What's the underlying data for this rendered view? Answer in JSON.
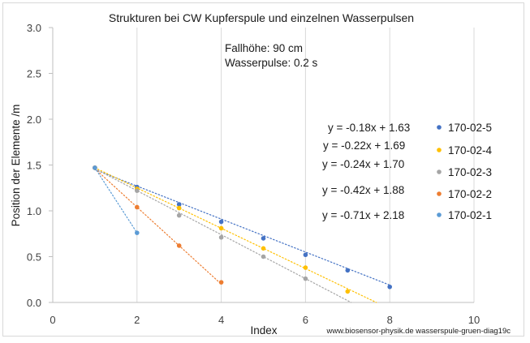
{
  "chart_data": {
    "type": "scatter",
    "title": "Strukturen bei CW Kupferspule und einzelnen Wasserpulsen",
    "xlabel": "Index",
    "ylabel": "Position der Elemente /m",
    "xlim": [
      0,
      10
    ],
    "ylim": [
      0,
      3.0
    ],
    "x_ticks": [
      "0",
      "2",
      "4",
      "6",
      "8",
      "10"
    ],
    "y_ticks": [
      "0.0",
      "0.5",
      "1.0",
      "1.5",
      "2.0",
      "2.5",
      "3.0"
    ],
    "grid": "vertical",
    "legend_position": "right",
    "annotations": [
      "Fallhöhe: 90 cm",
      "Wasserpulse: 0.2 s"
    ],
    "footer": "www.biosensor-physik.de  wasserspule-gruen-diag19c",
    "series": [
      {
        "name": "170-02-5",
        "color": "#4472C4",
        "trendline_label": "y = -0.18x + 1.63",
        "trend": {
          "slope": -0.18,
          "intercept": 1.63,
          "x_range": [
            1,
            8
          ]
        },
        "points": [
          [
            1,
            1.47
          ],
          [
            2,
            1.26
          ],
          [
            3,
            1.07
          ],
          [
            4,
            0.88
          ],
          [
            5,
            0.7
          ],
          [
            6,
            0.52
          ],
          [
            7,
            0.35
          ],
          [
            8,
            0.17
          ]
        ]
      },
      {
        "name": "170-02-4",
        "color": "#FFC000",
        "trendline_label": "y = -0.22x + 1.69",
        "trend": {
          "slope": -0.22,
          "intercept": 1.69,
          "x_range": [
            1,
            7.68
          ]
        },
        "points": [
          [
            1,
            1.47
          ],
          [
            2,
            1.24
          ],
          [
            3,
            1.03
          ],
          [
            4,
            0.81
          ],
          [
            5,
            0.59
          ],
          [
            6,
            0.38
          ],
          [
            7,
            0.12
          ]
        ]
      },
      {
        "name": "170-02-3",
        "color": "#A5A5A5",
        "trendline_label": "y = -0.24x + 1.70",
        "trend": {
          "slope": -0.24,
          "intercept": 1.7,
          "x_range": [
            1,
            7.08
          ]
        },
        "points": [
          [
            1,
            1.47
          ],
          [
            2,
            1.22
          ],
          [
            3,
            0.95
          ],
          [
            4,
            0.71
          ],
          [
            5,
            0.5
          ],
          [
            6,
            0.26
          ]
        ]
      },
      {
        "name": "170-02-2",
        "color": "#ED7D31",
        "trendline_label": "y = -0.42x + 1.88",
        "trend": {
          "slope": -0.42,
          "intercept": 1.88,
          "x_range": [
            1,
            4
          ]
        },
        "points": [
          [
            1,
            1.47
          ],
          [
            2,
            1.04
          ],
          [
            3,
            0.62
          ],
          [
            4,
            0.22
          ]
        ]
      },
      {
        "name": "170-02-1",
        "color": "#5B9BD5",
        "trendline_label": "y = -0.71x + 2.18",
        "trend": {
          "slope": -0.71,
          "intercept": 2.18,
          "x_range": [
            1,
            2
          ]
        },
        "points": [
          [
            1,
            1.47
          ],
          [
            2,
            0.76
          ]
        ]
      }
    ]
  }
}
